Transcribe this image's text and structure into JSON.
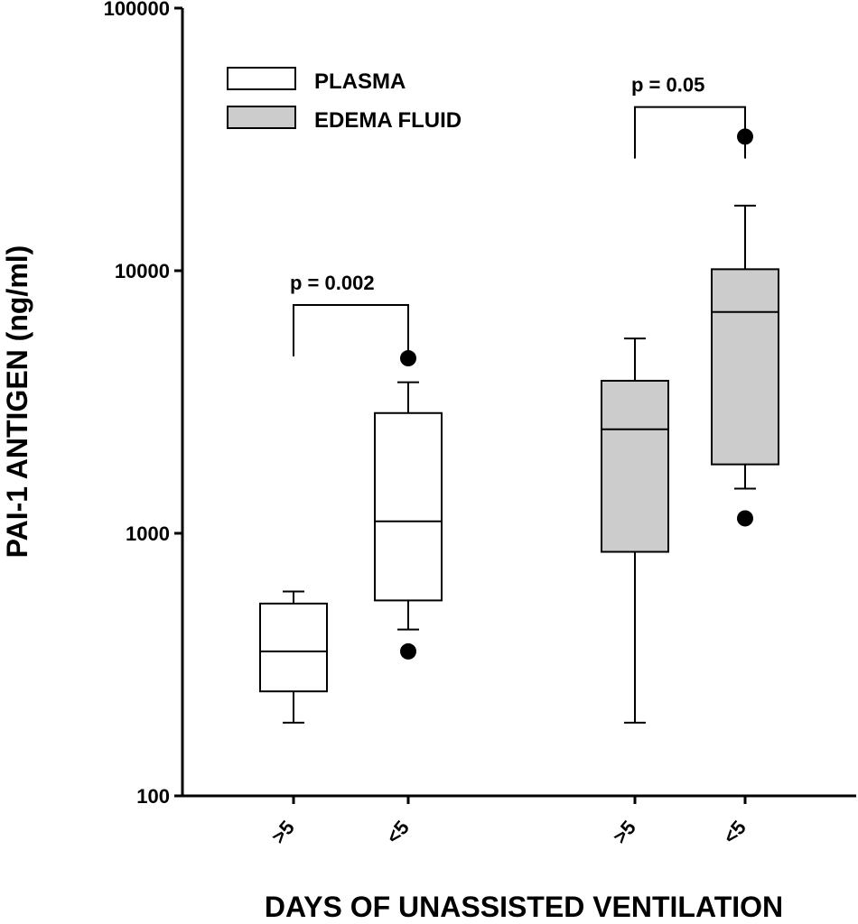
{
  "chart_data": {
    "type": "box",
    "title": "",
    "xlabel": "DAYS OF UNASSISTED VENTILATION",
    "ylabel": "PAI-1 ANTIGEN (ng/ml)",
    "yscale": "log",
    "ylim": [
      100,
      100000
    ],
    "yticks": [
      "100",
      "1000",
      "10000",
      "100000"
    ],
    "categories": [
      ">5",
      "<5",
      ">5",
      "<5"
    ],
    "legend": [
      {
        "name": "PLASMA",
        "color": "#ffffff"
      },
      {
        "name": "EDEMA FLUID",
        "color": "#cccccc"
      }
    ],
    "legend_position": "top-left",
    "grid": false,
    "series": [
      {
        "name": "PLASMA",
        "boxes": [
          {
            "category": ">5",
            "whisker_low": 190,
            "q1": 250,
            "median": 355,
            "q3": 540,
            "whisker_high": 600,
            "outliers": []
          },
          {
            "category": "<5",
            "whisker_low": 430,
            "q1": 555,
            "median": 1110,
            "q3": 2870,
            "whisker_high": 3760,
            "outliers": [
              355,
              4640
            ]
          }
        ]
      },
      {
        "name": "EDEMA FLUID",
        "boxes": [
          {
            "category": ">5",
            "whisker_low": 190,
            "q1": 850,
            "median": 2490,
            "q3": 3810,
            "whisker_high": 5520,
            "outliers": []
          },
          {
            "category": "<5",
            "whisker_low": 1480,
            "q1": 1830,
            "median": 6960,
            "q3": 10130,
            "whisker_high": 17700,
            "outliers": [
              1140,
              32400
            ]
          }
        ]
      }
    ],
    "annotations": [
      {
        "text": "p = 0.002",
        "from": 0,
        "to": 1,
        "y": 7400
      },
      {
        "text": "p = 0.05",
        "from": 2,
        "to": 3,
        "y": 42000
      }
    ]
  }
}
